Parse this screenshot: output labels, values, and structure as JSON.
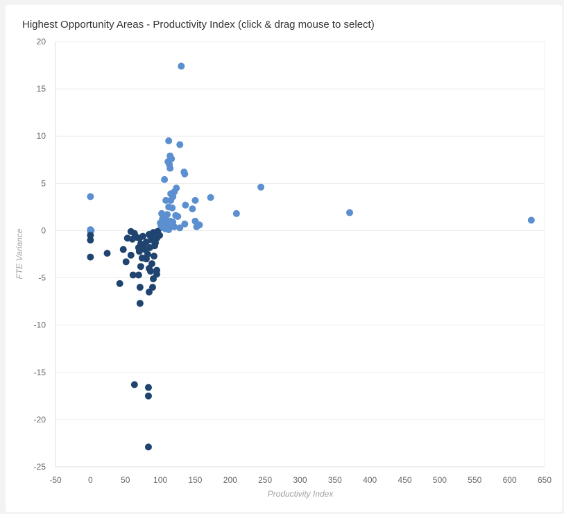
{
  "chart_data": {
    "type": "scatter",
    "title": "Highest Opportunity Areas - Productivity Index (click & drag mouse to select)",
    "xlabel": "Productivity Index",
    "ylabel": "FTE Variance",
    "xlim": [
      -50,
      650
    ],
    "ylim": [
      -25,
      20
    ],
    "x_ticks": [
      -50,
      0,
      50,
      100,
      150,
      200,
      250,
      300,
      350,
      400,
      450,
      500,
      550,
      600,
      650
    ],
    "y_ticks": [
      20,
      15,
      10,
      5,
      0,
      -5,
      -10,
      -15,
      -20,
      -25
    ],
    "grid": "horizontal",
    "legend": "none",
    "series": [
      {
        "color": "#5b8fcf",
        "points": [
          [
            130,
            17.4
          ],
          [
            112,
            9.5
          ],
          [
            128,
            9.1
          ],
          [
            114,
            7.9
          ],
          [
            116,
            7.6
          ],
          [
            111,
            7.3
          ],
          [
            113,
            7.0
          ],
          [
            134,
            6.2
          ],
          [
            135,
            6.0
          ],
          [
            114,
            6.6
          ],
          [
            106,
            5.4
          ],
          [
            123,
            4.5
          ],
          [
            120,
            4.1
          ],
          [
            115,
            3.9
          ],
          [
            0,
            3.6
          ],
          [
            172,
            3.5
          ],
          [
            118,
            3.6
          ],
          [
            108,
            3.2
          ],
          [
            115,
            3.2
          ],
          [
            150,
            3.2
          ],
          [
            136,
            2.7
          ],
          [
            112,
            2.5
          ],
          [
            117,
            2.4
          ],
          [
            146,
            2.3
          ],
          [
            244,
            4.6
          ],
          [
            371,
            1.9
          ],
          [
            209,
            1.8
          ],
          [
            631,
            1.1
          ],
          [
            102,
            1.8
          ],
          [
            110,
            1.7
          ],
          [
            122,
            1.6
          ],
          [
            125,
            1.5
          ],
          [
            103,
            1.2
          ],
          [
            108,
            1.1
          ],
          [
            114,
            1.0
          ],
          [
            118,
            0.9
          ],
          [
            100,
            0.8
          ],
          [
            105,
            0.7
          ],
          [
            110,
            0.6
          ],
          [
            116,
            0.5
          ],
          [
            120,
            0.4
          ],
          [
            101,
            0.3
          ],
          [
            107,
            0.2
          ],
          [
            112,
            0.1
          ],
          [
            150,
            1.0
          ],
          [
            156,
            0.6
          ],
          [
            152,
            0.4
          ],
          [
            135,
            0.7
          ],
          [
            128,
            0.3
          ],
          [
            117,
            0.6
          ],
          [
            0,
            0.1
          ],
          [
            0,
            -0.1
          ],
          [
            1,
            0.0
          ]
        ]
      },
      {
        "color": "#1f4470",
        "points": [
          [
            83,
            -22.9
          ],
          [
            83,
            -17.5
          ],
          [
            83,
            -16.6
          ],
          [
            63,
            -16.3
          ],
          [
            71,
            -7.7
          ],
          [
            84,
            -6.5
          ],
          [
            89,
            -6.0
          ],
          [
            71,
            -6.0
          ],
          [
            42,
            -5.6
          ],
          [
            90,
            -5.1
          ],
          [
            61,
            -4.7
          ],
          [
            69,
            -4.7
          ],
          [
            95,
            -4.6
          ],
          [
            95,
            -4.2
          ],
          [
            86,
            -4.3
          ],
          [
            84,
            -4.0
          ],
          [
            72,
            -3.8
          ],
          [
            88,
            -3.5
          ],
          [
            51,
            -3.3
          ],
          [
            74,
            -2.9
          ],
          [
            58,
            -2.6
          ],
          [
            0,
            -2.8
          ],
          [
            24,
            -2.4
          ],
          [
            47,
            -2.0
          ],
          [
            70,
            -2.2
          ],
          [
            78,
            -2.0
          ],
          [
            85,
            -1.8
          ],
          [
            92,
            -1.6
          ],
          [
            72,
            -1.4
          ],
          [
            80,
            -1.2
          ],
          [
            88,
            -1.0
          ],
          [
            95,
            -0.8
          ],
          [
            99,
            -0.5
          ],
          [
            66,
            -0.7
          ],
          [
            75,
            -0.6
          ],
          [
            84,
            -0.4
          ],
          [
            90,
            -0.2
          ],
          [
            96,
            -0.1
          ],
          [
            58,
            -0.1
          ],
          [
            63,
            -0.3
          ],
          [
            70,
            -0.8
          ],
          [
            60,
            -0.9
          ],
          [
            53,
            -0.8
          ],
          [
            0,
            -0.5
          ],
          [
            0,
            -1.0
          ],
          [
            82,
            -2.5
          ],
          [
            76,
            -1.5
          ],
          [
            86,
            -0.6
          ],
          [
            93,
            -1.3
          ],
          [
            80,
            -3.0
          ],
          [
            91,
            -2.7
          ],
          [
            69,
            -1.8
          ]
        ]
      }
    ]
  }
}
